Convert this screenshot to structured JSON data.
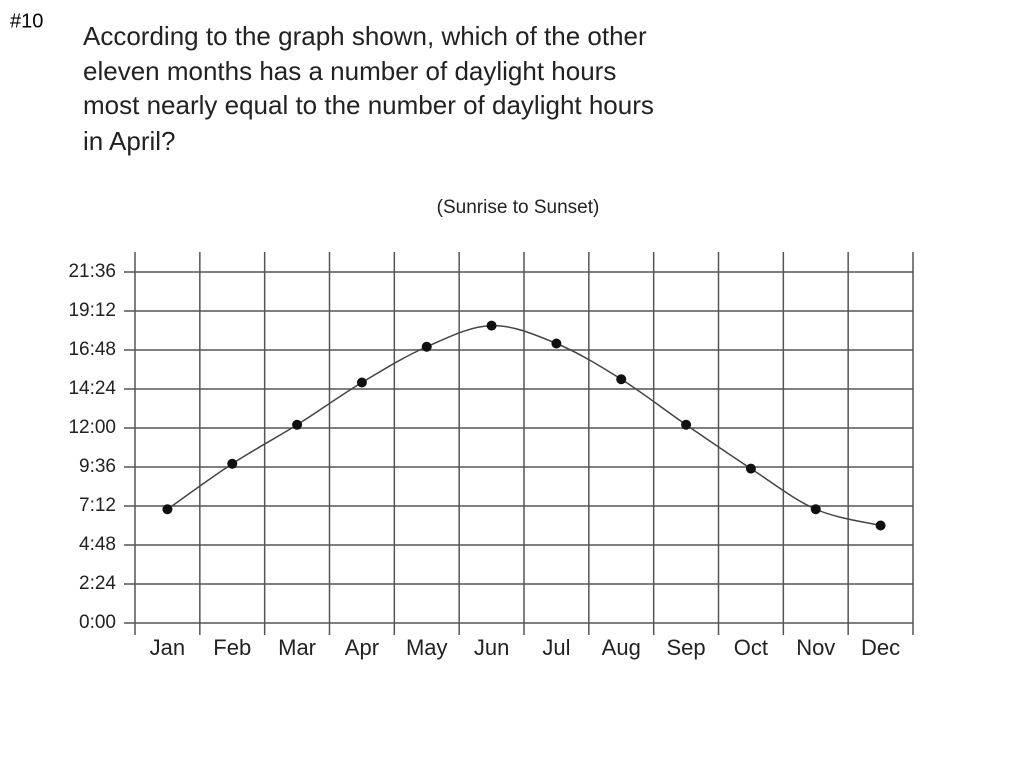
{
  "slide_number": "#10",
  "question": [
    "According to the graph shown, which of the other",
    "eleven months has a number of daylight hours",
    "most nearly equal to the number of daylight hours",
    "in April?"
  ],
  "chart_data": {
    "type": "line",
    "subtitle": "(Sunrise to Sunset)",
    "categories": [
      "Jan",
      "Feb",
      "Mar",
      "Apr",
      "May",
      "Jun",
      "Jul",
      "Aug",
      "Sep",
      "Oct",
      "Nov",
      "Dec"
    ],
    "series": [
      {
        "color": "#444444",
        "values": [
          7.0,
          9.8,
          12.2,
          14.8,
          17.0,
          18.3,
          17.2,
          15.0,
          12.2,
          9.5,
          7.0,
          6.0
        ]
      }
    ],
    "ylim": [
      0,
      21.6
    ],
    "yticks": [
      {
        "value": 0,
        "label": "0:00"
      },
      {
        "value": 2.4,
        "label": "2:24"
      },
      {
        "value": 4.8,
        "label": "4:48"
      },
      {
        "value": 7.2,
        "label": "7:12"
      },
      {
        "value": 9.6,
        "label": "9:36"
      },
      {
        "value": 12,
        "label": "12:00"
      },
      {
        "value": 14.4,
        "label": "14:24"
      },
      {
        "value": 16.8,
        "label": "16:48"
      },
      {
        "value": 19.2,
        "label": "19:12"
      },
      {
        "value": 21.6,
        "label": "21:36"
      }
    ],
    "grid": true
  }
}
